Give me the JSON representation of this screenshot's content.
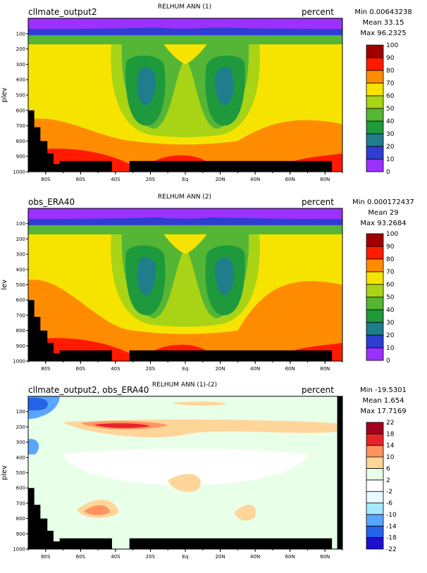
{
  "colors": {
    "seq": [
      "#9b30ff",
      "#2e3ed0",
      "#1f7d8c",
      "#1e9a3c",
      "#55b535",
      "#a8d415",
      "#f6e400",
      "#ff8c00",
      "#ff1a00",
      "#a00000"
    ],
    "diff": [
      "#1c0fd0",
      "#2463ea",
      "#58a6ff",
      "#a8e8ff",
      "#e6fbff",
      "#ffffff",
      "#e8ffe8",
      "#ffd59a",
      "#ff9460",
      "#e8242b",
      "#a5001e"
    ]
  },
  "chart_data": [
    {
      "type": "heatmap",
      "left_title": "cllmate_output2",
      "center_title": "RELHUM ANN (1)",
      "units": "percent",
      "stats": [
        "Min 0.00643238",
        "Mean 33.15",
        "Max 96.2325"
      ],
      "ylabel": "plev",
      "x_ticks": [
        "80S",
        "60S",
        "40S",
        "20S",
        "Eq",
        "20N",
        "40N",
        "60N",
        "80N"
      ],
      "x_values": [
        -80,
        -60,
        -40,
        -20,
        0,
        20,
        40,
        60,
        80
      ],
      "xlim": [
        -90,
        90
      ],
      "y_ticks": [
        "100",
        "200",
        "300",
        "400",
        "500",
        "600",
        "700",
        "800",
        "900",
        "1000"
      ],
      "y_values": [
        100,
        200,
        300,
        400,
        500,
        600,
        700,
        800,
        900,
        1000
      ],
      "ylim": [
        0,
        1000
      ],
      "colorbar_levels": [
        "0",
        "10",
        "20",
        "30",
        "40",
        "50",
        "60",
        "70",
        "80",
        "90",
        "100"
      ],
      "palette": "seq"
    },
    {
      "type": "heatmap",
      "left_title": "obs_ERA40",
      "center_title": "RELHUM ANN (2)",
      "units": "percent",
      "stats": [
        "Min 0.000172437",
        "Mean 29",
        "Max 93.2684"
      ],
      "ylabel": "lev",
      "x_ticks": [
        "80S",
        "60S",
        "40S",
        "20S",
        "Eq",
        "20N",
        "40N",
        "60N",
        "80N"
      ],
      "x_values": [
        -80,
        -60,
        -40,
        -20,
        0,
        20,
        40,
        60,
        80
      ],
      "xlim": [
        -90,
        90
      ],
      "y_ticks": [
        "100",
        "200",
        "300",
        "400",
        "500",
        "600",
        "700",
        "800",
        "900",
        "1000"
      ],
      "y_values": [
        100,
        200,
        300,
        400,
        500,
        600,
        700,
        800,
        900,
        1000
      ],
      "ylim": [
        0,
        1000
      ],
      "colorbar_levels": [
        "0",
        "10",
        "20",
        "30",
        "40",
        "50",
        "60",
        "70",
        "80",
        "90",
        "100"
      ],
      "palette": "seq"
    },
    {
      "type": "heatmap",
      "left_title": "cllmate_output2, obs_ERA40",
      "center_title": "RELHUM ANN (1)-(2)",
      "units": "percent",
      "stats": [
        "Min -19.5301",
        "Mean 1.654",
        "Max 17.7169"
      ],
      "ylabel": "plev",
      "x_ticks": [
        "80S",
        "60S",
        "40S",
        "20S",
        "Eq",
        "20N",
        "40N",
        "60N",
        "80N"
      ],
      "x_values": [
        -80,
        -60,
        -40,
        -20,
        0,
        20,
        40,
        60,
        80
      ],
      "xlim": [
        -90,
        90
      ],
      "y_ticks": [
        "100",
        "200",
        "300",
        "400",
        "500",
        "600",
        "700",
        "800",
        "900",
        "1000"
      ],
      "y_values": [
        100,
        200,
        300,
        400,
        500,
        600,
        700,
        800,
        900,
        1000
      ],
      "ylim": [
        0,
        1000
      ],
      "colorbar_levels": [
        "-22",
        "-18",
        "-14",
        "-10",
        "-6",
        "-2",
        "2",
        "6",
        "10",
        "14",
        "18",
        "22"
      ],
      "palette": "diff"
    }
  ]
}
